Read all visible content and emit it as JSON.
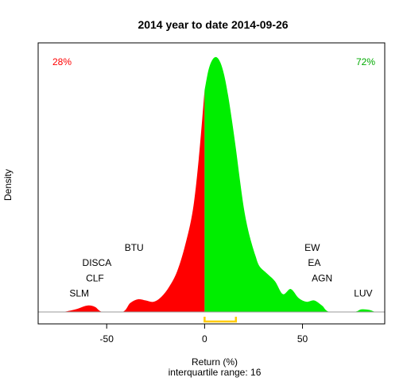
{
  "chart_data": {
    "type": "area",
    "title": "2014  year to date 2014-09-26",
    "xlabel": "Return (%)",
    "subtitle": "interquartile range: 16",
    "ylabel": "Density",
    "xlim": [
      -85,
      92
    ],
    "ylim": [
      0,
      1
    ],
    "x_ticks": [
      -50,
      0,
      50
    ],
    "negative_share_label": "28%",
    "positive_share_label": "72%",
    "negative_color": "#ff0000",
    "positive_color": "#00ee00",
    "axis_color": "#999999",
    "iqr_marker_color": "#ffcc00",
    "iqr_range": [
      0,
      16
    ],
    "density_curve": [
      {
        "x": -72,
        "y": 0.0
      },
      {
        "x": -66,
        "y": 0.01
      },
      {
        "x": -60,
        "y": 0.025
      },
      {
        "x": -56,
        "y": 0.02
      },
      {
        "x": -52,
        "y": 0.0
      },
      {
        "x": -42,
        "y": 0.0
      },
      {
        "x": -38,
        "y": 0.035
      },
      {
        "x": -34,
        "y": 0.05
      },
      {
        "x": -30,
        "y": 0.045
      },
      {
        "x": -26,
        "y": 0.04
      },
      {
        "x": -22,
        "y": 0.06
      },
      {
        "x": -18,
        "y": 0.1
      },
      {
        "x": -14,
        "y": 0.16
      },
      {
        "x": -10,
        "y": 0.26
      },
      {
        "x": -6,
        "y": 0.4
      },
      {
        "x": -3,
        "y": 0.6
      },
      {
        "x": 0,
        "y": 0.87
      },
      {
        "x": 2,
        "y": 0.95
      },
      {
        "x": 4,
        "y": 0.99
      },
      {
        "x": 6,
        "y": 1.0
      },
      {
        "x": 8,
        "y": 0.98
      },
      {
        "x": 10,
        "y": 0.93
      },
      {
        "x": 12,
        "y": 0.85
      },
      {
        "x": 14,
        "y": 0.75
      },
      {
        "x": 16,
        "y": 0.64
      },
      {
        "x": 18,
        "y": 0.52
      },
      {
        "x": 20,
        "y": 0.41
      },
      {
        "x": 22,
        "y": 0.33
      },
      {
        "x": 24,
        "y": 0.27
      },
      {
        "x": 26,
        "y": 0.22
      },
      {
        "x": 28,
        "y": 0.18
      },
      {
        "x": 32,
        "y": 0.15
      },
      {
        "x": 36,
        "y": 0.12
      },
      {
        "x": 40,
        "y": 0.07
      },
      {
        "x": 44,
        "y": 0.09
      },
      {
        "x": 48,
        "y": 0.055
      },
      {
        "x": 52,
        "y": 0.04
      },
      {
        "x": 56,
        "y": 0.045
      },
      {
        "x": 60,
        "y": 0.025
      },
      {
        "x": 64,
        "y": 0.0
      },
      {
        "x": 76,
        "y": 0.0
      },
      {
        "x": 80,
        "y": 0.01
      },
      {
        "x": 84,
        "y": 0.008
      },
      {
        "x": 87,
        "y": 0.0
      }
    ],
    "annotations": [
      {
        "label": "SLM",
        "x": -64,
        "y": 0.06
      },
      {
        "label": "CLF",
        "x": -56,
        "y": 0.12
      },
      {
        "label": "DISCA",
        "x": -55,
        "y": 0.18
      },
      {
        "label": "BTU",
        "x": -36,
        "y": 0.24
      },
      {
        "label": "EW",
        "x": 55,
        "y": 0.24
      },
      {
        "label": "EA",
        "x": 56,
        "y": 0.18
      },
      {
        "label": "AGN",
        "x": 60,
        "y": 0.12
      },
      {
        "label": "LUV",
        "x": 81,
        "y": 0.06
      }
    ]
  }
}
